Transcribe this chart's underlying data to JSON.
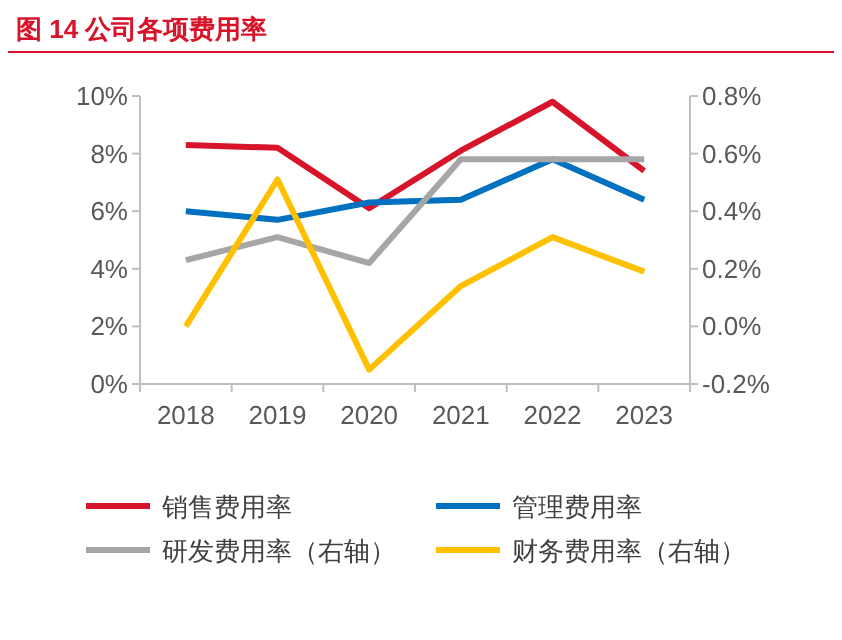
{
  "chart_data": {
    "type": "line",
    "title": "图 14   公司各项费用率",
    "categories": [
      "2018",
      "2019",
      "2020",
      "2021",
      "2022",
      "2023"
    ],
    "series": [
      {
        "name": "销售费用率",
        "color": "#d7152a",
        "values": [
          8.3,
          8.2,
          6.1,
          8.1,
          9.8,
          7.4
        ]
      },
      {
        "name": "管理费用率",
        "color": "#0070c0",
        "values": [
          6.0,
          5.7,
          6.3,
          6.4,
          7.8,
          6.4
        ]
      },
      {
        "name": "研发费用率（右轴）",
        "color": "#a6a6a6",
        "axis": "y2",
        "values": [
          0.23,
          0.31,
          0.22,
          0.58,
          0.58,
          0.58
        ]
      },
      {
        "name": "财务费用率（右轴）",
        "color": "#ffc000",
        "axis": "y2",
        "values": [
          0.0,
          0.51,
          -0.15,
          0.14,
          0.31,
          0.19
        ]
      }
    ],
    "ylim": [
      0,
      10
    ],
    "yticks": [
      {
        "value": 0,
        "label": "0%"
      },
      {
        "value": 2,
        "label": "2%"
      },
      {
        "value": 4,
        "label": "4%"
      },
      {
        "value": 6,
        "label": "6%"
      },
      {
        "value": 8,
        "label": "8%"
      },
      {
        "value": 10,
        "label": "10%"
      }
    ],
    "y2lim": [
      -0.2,
      0.8
    ],
    "y2ticks": [
      {
        "value": -0.2,
        "label": "-0.2%"
      },
      {
        "value": 0,
        "label": "0.0%"
      },
      {
        "value": 0.2,
        "label": "0.2%"
      },
      {
        "value": 0.4,
        "label": "0.4%"
      },
      {
        "value": 0.6,
        "label": "0.6%"
      },
      {
        "value": 0.8,
        "label": "0.8%"
      }
    ],
    "grid": false,
    "legend": "bottom",
    "marker": "none",
    "line_style": "solid"
  }
}
